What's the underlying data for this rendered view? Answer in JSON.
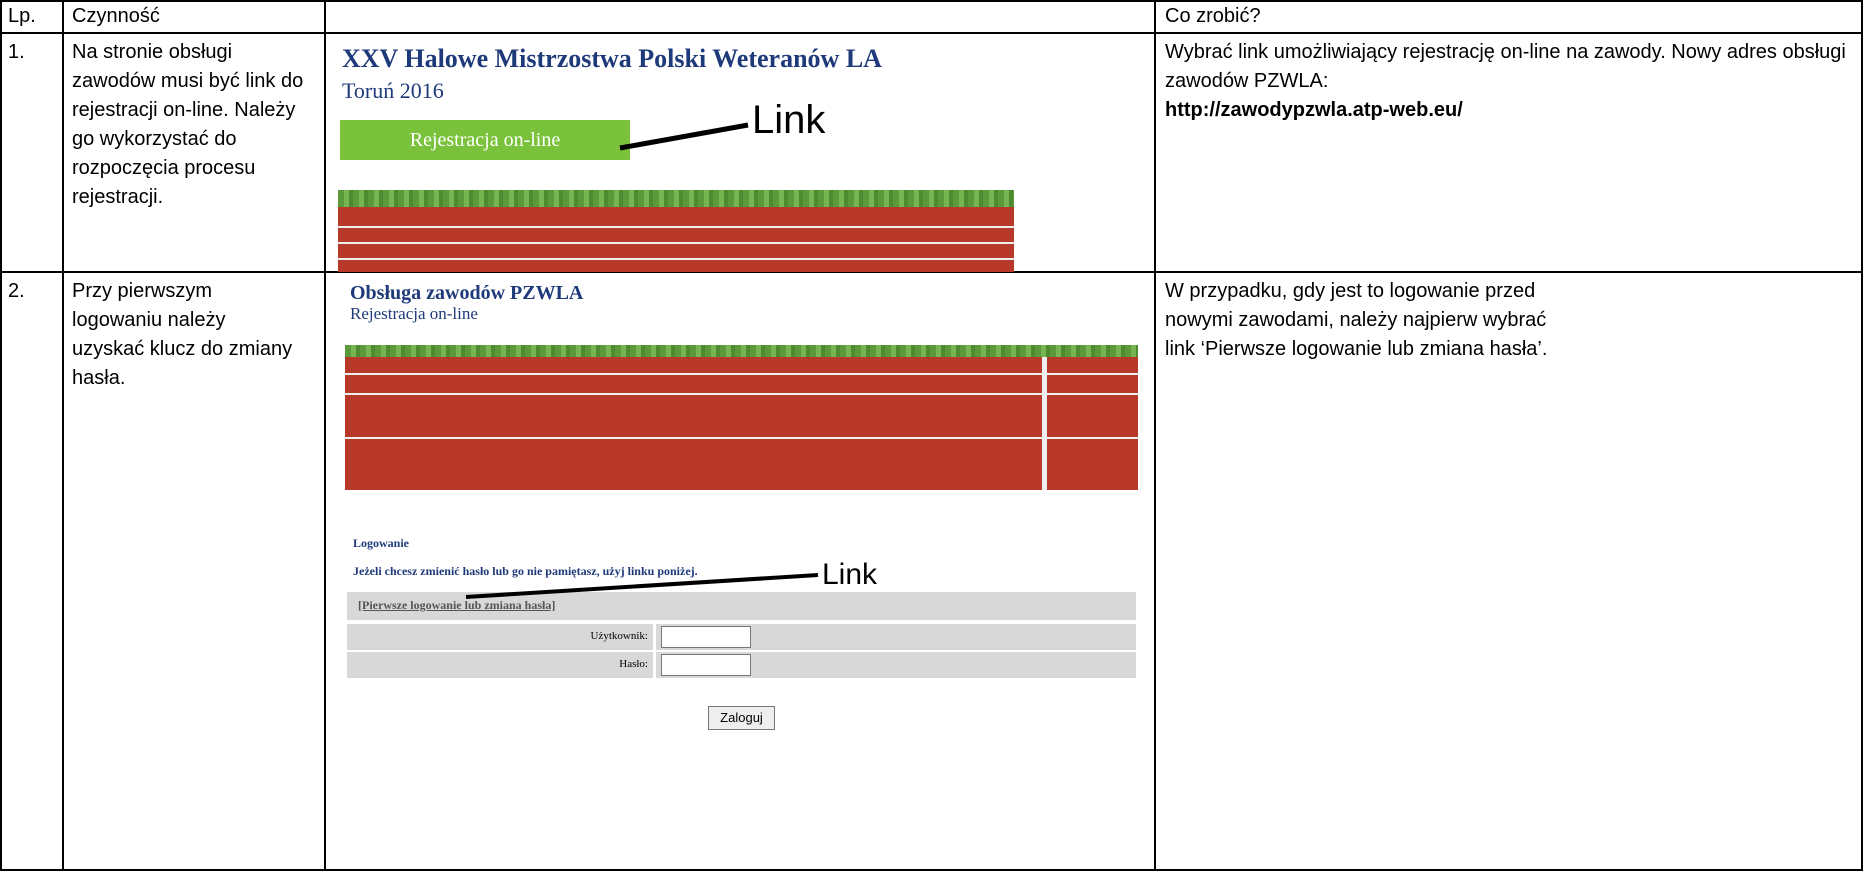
{
  "table": {
    "header": {
      "lp": "Lp.",
      "action": "Czynność",
      "todo": "Co zrobić?"
    },
    "rows": [
      {
        "lp": "1.",
        "action": "Na stronie obsługi zawodów musi być link do rejestracji on-line. Należy go wykorzystać do rozpoczęcia procesu rejestracji.",
        "todo": "Wybrać link umożliwiający rejestrację on-line na zawody. Nowy adres obsługi zawodów PZWLA:",
        "todo_link": "http://zawodypzwla.atp-web.eu/",
        "screenshot": {
          "title": "XXV Halowe Mistrzostwa Polski Weteranów LA",
          "subtitle": "Toruń 2016",
          "button": "Rejestracja on-line",
          "annotation": "Link"
        }
      },
      {
        "lp": "2.",
        "action": "Przy pierwszym logowaniu należy uzyskać klucz do zmiany hasła.",
        "todo": "W przypadku, gdy jest to logowanie przed nowymi zawodami, należy najpierw wybrać link ‘Pierwsze logowanie lub zmiana hasła’.",
        "screenshot": {
          "title": "Obsługa zawodów PZWLA",
          "subtitle": "Rejestracja on-line",
          "login_heading": "Logowanie",
          "hint": "Jeżeli chcesz zmienić hasło lub go nie pamiętasz, użyj linku poniżej.",
          "link": "[Pierwsze logowanie lub zmiana hasła]",
          "user_label": "Użytkownik:",
          "password_label": "Hasło:",
          "submit": "Zaloguj",
          "annotation": "Link"
        }
      }
    ]
  }
}
